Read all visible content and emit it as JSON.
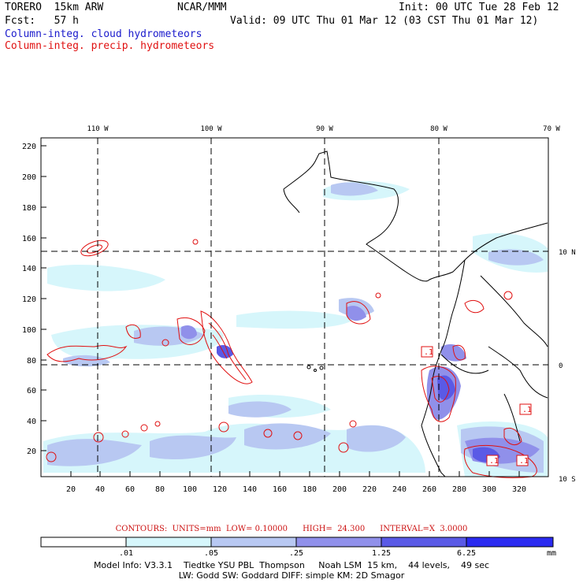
{
  "header": {
    "model": "TORERO  15km ARW",
    "org": "NCAR/MMM",
    "init": "Init: 00 UTC Tue 28 Feb 12",
    "fcst": "Fcst:   57 h",
    "valid": "Valid: 09 UTC Thu 01 Mar 12 (03 CST Thu 01 Mar 12)",
    "field1": "Column-integ. cloud hydrometeors",
    "field2": "Column-integ. precip. hydrometeors",
    "field1_color": "#1a1acc",
    "field2_color": "#e01010"
  },
  "map": {
    "lon_labels": [
      "110 W",
      "100 W",
      "90 W",
      "80 W",
      "70 W"
    ],
    "lat_labels": [
      "10 N",
      "0",
      "10 S"
    ],
    "x_ticks": [
      "20",
      "40",
      "60",
      "80",
      "100",
      "120",
      "140",
      "160",
      "180",
      "200",
      "220",
      "240",
      "260",
      "280",
      "300",
      "320"
    ],
    "y_ticks": [
      "20",
      "40",
      "60",
      "80",
      "100",
      "120",
      "140",
      "160",
      "180",
      "200",
      "220"
    ],
    "contour_labels": [
      ".1",
      ".1",
      ".1",
      ".1"
    ]
  },
  "colorbar": {
    "labels": [
      ".01",
      ".05",
      ".25",
      "1.25",
      "6.25"
    ],
    "unit": "mm",
    "colors": [
      "#ffffff",
      "#d6f6fb",
      "#b8c8f2",
      "#9090ea",
      "#5a5ae6",
      "#2a2af0"
    ]
  },
  "contours_line": "CONTOURS:  UNITS=mm  LOW= 0.10000      HIGH=  24.300      INTERVAL=X  3.0000",
  "model_info_1": "Model Info: V3.3.1    Tiedtke YSU PBL  Thompson     Noah LSM  15 km,    44 levels,    49 sec",
  "model_info_2": "LW: Godd SW: Goddard DIFF: simple KM: 2D Smagor"
}
